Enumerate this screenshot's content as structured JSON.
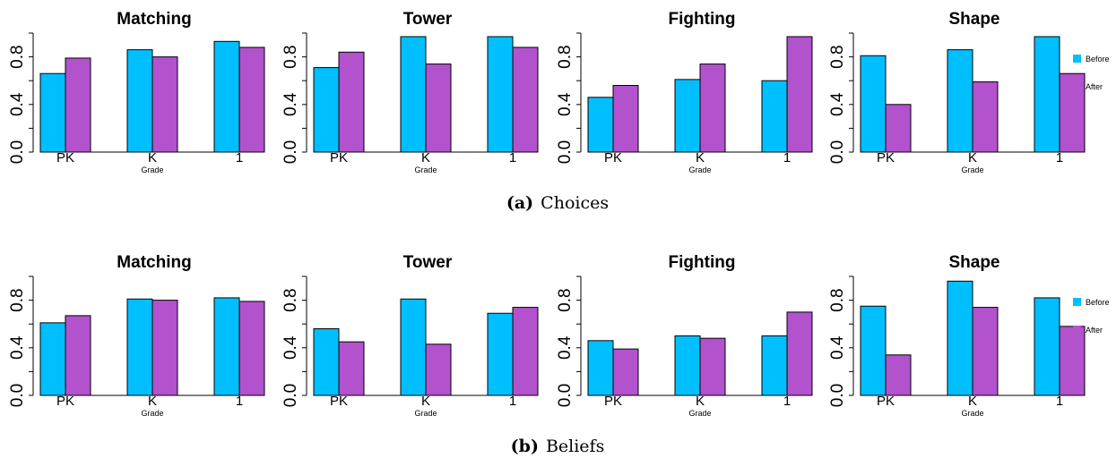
{
  "figure": {
    "captions": [
      {
        "label": "(a)",
        "text": "Choices"
      },
      {
        "label": "(b)",
        "text": "Beliefs"
      }
    ]
  },
  "legend": {
    "items": [
      {
        "label": "Before",
        "color": "#00BFFF"
      },
      {
        "label": "After",
        "color": "#B252CD"
      }
    ]
  },
  "chart_data": [
    {
      "type": "bar",
      "title": "Matching",
      "xlabel": "Grade",
      "ylabel": "",
      "categories": [
        "PK",
        "K",
        "1"
      ],
      "ylim": [
        0,
        1
      ],
      "yticks": [
        "0.0",
        "0.4",
        "0.8"
      ],
      "series": [
        {
          "name": "Before",
          "values": [
            0.66,
            0.86,
            0.93
          ]
        },
        {
          "name": "After",
          "values": [
            0.79,
            0.8,
            0.88
          ]
        }
      ]
    },
    {
      "type": "bar",
      "title": "Tower",
      "xlabel": "Grade",
      "ylabel": "",
      "categories": [
        "PK",
        "K",
        "1"
      ],
      "ylim": [
        0,
        1
      ],
      "yticks": [
        "0.0",
        "0.4",
        "0.8"
      ],
      "series": [
        {
          "name": "Before",
          "values": [
            0.71,
            0.97,
            0.97
          ]
        },
        {
          "name": "After",
          "values": [
            0.84,
            0.74,
            0.88
          ]
        }
      ]
    },
    {
      "type": "bar",
      "title": "Fighting",
      "xlabel": "Grade",
      "ylabel": "",
      "categories": [
        "PK",
        "K",
        "1"
      ],
      "ylim": [
        0,
        1
      ],
      "yticks": [
        "0.0",
        "0.4",
        "0.8"
      ],
      "series": [
        {
          "name": "Before",
          "values": [
            0.46,
            0.61,
            0.6
          ]
        },
        {
          "name": "After",
          "values": [
            0.56,
            0.74,
            0.97
          ]
        }
      ]
    },
    {
      "type": "bar",
      "title": "Shape",
      "xlabel": "Grade",
      "ylabel": "",
      "categories": [
        "PK",
        "K",
        "1"
      ],
      "ylim": [
        0,
        1
      ],
      "yticks": [
        "0.0",
        "0.4",
        "0.8"
      ],
      "series": [
        {
          "name": "Before",
          "values": [
            0.81,
            0.86,
            0.97
          ]
        },
        {
          "name": "After",
          "values": [
            0.4,
            0.59,
            0.66
          ]
        }
      ]
    },
    {
      "type": "bar",
      "title": "Matching",
      "xlabel": "Grade",
      "ylabel": "",
      "categories": [
        "PK",
        "K",
        "1"
      ],
      "ylim": [
        0,
        1
      ],
      "yticks": [
        "0.0",
        "0.4",
        "0.8"
      ],
      "series": [
        {
          "name": "Before",
          "values": [
            0.61,
            0.81,
            0.82
          ]
        },
        {
          "name": "After",
          "values": [
            0.67,
            0.8,
            0.79
          ]
        }
      ]
    },
    {
      "type": "bar",
      "title": "Tower",
      "xlabel": "Grade",
      "ylabel": "",
      "categories": [
        "PK",
        "K",
        "1"
      ],
      "ylim": [
        0,
        1
      ],
      "yticks": [
        "0.0",
        "0.4",
        "0.8"
      ],
      "series": [
        {
          "name": "Before",
          "values": [
            0.56,
            0.81,
            0.69
          ]
        },
        {
          "name": "After",
          "values": [
            0.45,
            0.43,
            0.74
          ]
        }
      ]
    },
    {
      "type": "bar",
      "title": "Fighting",
      "xlabel": "Grade",
      "ylabel": "",
      "categories": [
        "PK",
        "K",
        "1"
      ],
      "ylim": [
        0,
        1
      ],
      "yticks": [
        "0.0",
        "0.4",
        "0.8"
      ],
      "series": [
        {
          "name": "Before",
          "values": [
            0.46,
            0.5,
            0.5
          ]
        },
        {
          "name": "After",
          "values": [
            0.39,
            0.48,
            0.7
          ]
        }
      ]
    },
    {
      "type": "bar",
      "title": "Shape",
      "xlabel": "Grade",
      "ylabel": "",
      "categories": [
        "PK",
        "K",
        "1"
      ],
      "ylim": [
        0,
        1
      ],
      "yticks": [
        "0.0",
        "0.4",
        "0.8"
      ],
      "series": [
        {
          "name": "Before",
          "values": [
            0.75,
            0.96,
            0.82
          ]
        },
        {
          "name": "After",
          "values": [
            0.34,
            0.74,
            0.58
          ]
        }
      ]
    }
  ]
}
